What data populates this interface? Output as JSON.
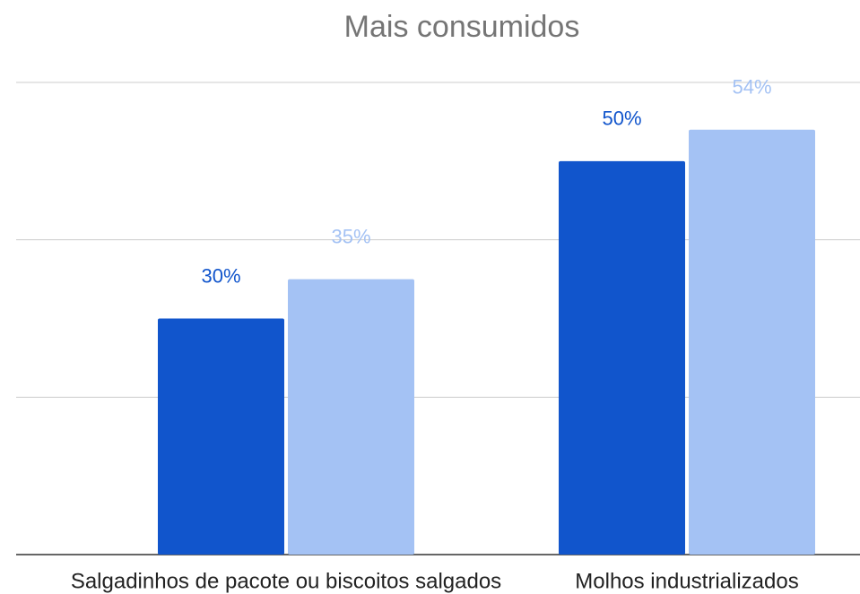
{
  "chart_data": {
    "type": "bar",
    "title": "Mais consumidos",
    "categories": [
      "Salgadinhos de pacote ou biscoitos salgados",
      "Molhos industrializados"
    ],
    "series": [
      {
        "color": "#1155cc",
        "values": [
          30,
          50
        ],
        "value_labels": [
          "30%",
          "50%"
        ]
      },
      {
        "color": "#a4c2f4",
        "values": [
          35,
          54
        ],
        "value_labels": [
          "35%",
          "54%"
        ]
      }
    ],
    "ylim": [
      0,
      60
    ],
    "yticks": [
      0,
      20,
      40,
      60
    ],
    "grid": true
  }
}
